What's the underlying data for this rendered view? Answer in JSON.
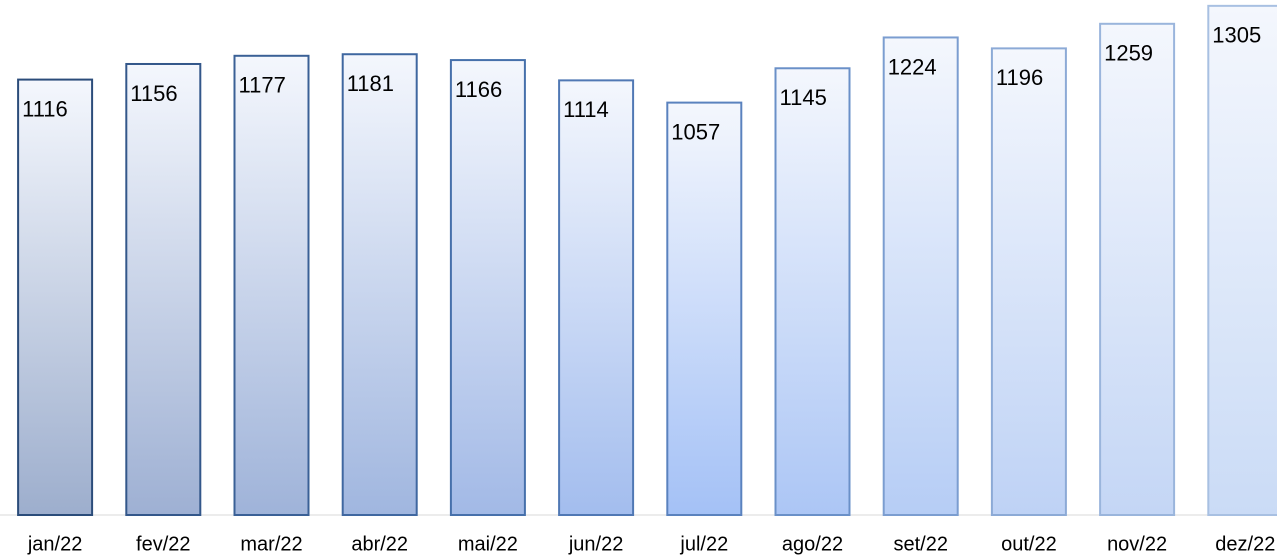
{
  "chart_data": {
    "type": "bar",
    "categories": [
      "jan/22",
      "fev/22",
      "mar/22",
      "abr/22",
      "mai/22",
      "jun/22",
      "jul/22",
      "ago/22",
      "set/22",
      "out/22",
      "nov/22",
      "dez/22"
    ],
    "values": [
      1116,
      1156,
      1177,
      1181,
      1166,
      1114,
      1057,
      1145,
      1224,
      1196,
      1259,
      1305
    ],
    "colors": [
      "#9daecd",
      "#9eb0d3",
      "#9fb3d9",
      "#a0b6df",
      "#a2b9e6",
      "#a3bdee",
      "#a4c1f6",
      "#acc6f5",
      "#b6cdf5",
      "#bed2f5",
      "#c4d6f5",
      "#cadbf6"
    ],
    "edge_colors": [
      "#2b4c7a",
      "#33578a",
      "#3a6096",
      "#3f67a0",
      "#4670ab",
      "#5078b4",
      "#5a82be",
      "#6a90c8",
      "#7b9dd0",
      "#8caad6",
      "#9ab5dc",
      "#a8c0e2"
    ],
    "ylim": [
      0,
      1320
    ],
    "grid": false
  }
}
